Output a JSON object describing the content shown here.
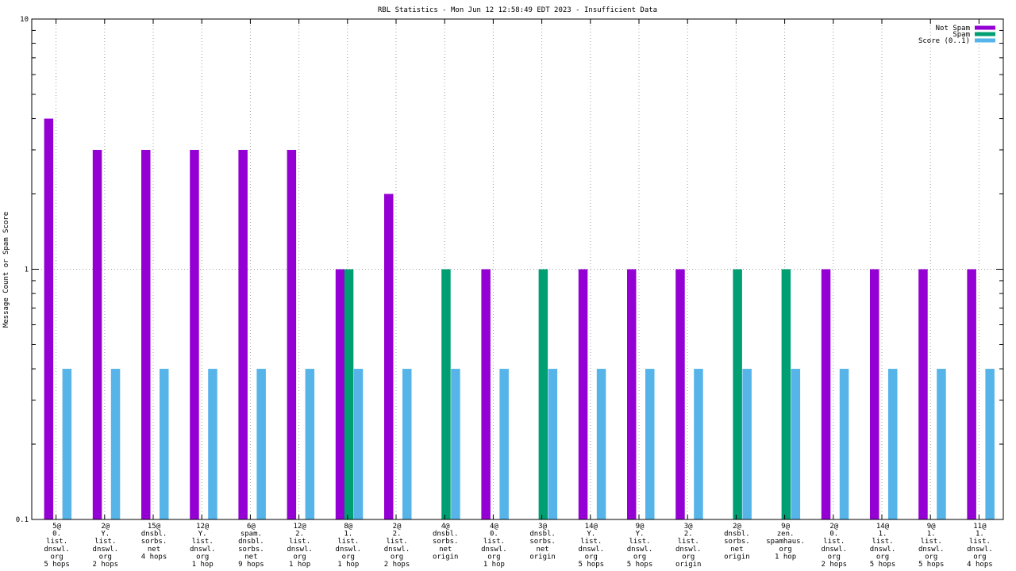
{
  "chart_data": {
    "type": "bar",
    "title": "RBL Statistics - Mon Jun 12 12:58:49 EDT 2023 - Insufficient Data",
    "xlabel": "",
    "ylabel": "Message Count or Spam Score",
    "y_scale": "log",
    "ylim": [
      0.1,
      10
    ],
    "y_ticks": [
      {
        "value": 0.1,
        "label": "0.1"
      },
      {
        "value": 1,
        "label": "1"
      },
      {
        "value": 10,
        "label": "10"
      }
    ],
    "grid": true,
    "legend_position": "top-right",
    "categories": [
      [
        "5@",
        "0.",
        "list.",
        "dnswl.",
        "org",
        "5 hops"
      ],
      [
        "2@",
        "Y.",
        "list.",
        "dnswl.",
        "org",
        "2 hops"
      ],
      [
        "15@",
        "dnsbl.",
        "sorbs.",
        "net",
        "4 hops"
      ],
      [
        "12@",
        "Y.",
        "list.",
        "dnswl.",
        "org",
        "1 hop"
      ],
      [
        "6@",
        "spam.",
        "dnsbl.",
        "sorbs.",
        "net",
        "9 hops"
      ],
      [
        "12@",
        "2.",
        "list.",
        "dnswl.",
        "org",
        "1 hop"
      ],
      [
        "8@",
        "1.",
        "list.",
        "dnswl.",
        "org",
        "1 hop"
      ],
      [
        "2@",
        "2.",
        "list.",
        "dnswl.",
        "org",
        "2 hops"
      ],
      [
        "4@",
        "dnsbl.",
        "sorbs.",
        "net",
        "origin"
      ],
      [
        "4@",
        "0.",
        "list.",
        "dnswl.",
        "org",
        "1 hop"
      ],
      [
        "3@",
        "dnsbl.",
        "sorbs.",
        "net",
        "origin"
      ],
      [
        "14@",
        "Y.",
        "list.",
        "dnswl.",
        "org",
        "5 hops"
      ],
      [
        "9@",
        "Y.",
        "list.",
        "dnswl.",
        "org",
        "5 hops"
      ],
      [
        "3@",
        "2.",
        "list.",
        "dnswl.",
        "org",
        "origin"
      ],
      [
        "2@",
        "dnsbl.",
        "sorbs.",
        "net",
        "origin"
      ],
      [
        "9@",
        "zen.",
        "spamhaus.",
        "org",
        "1 hop"
      ],
      [
        "2@",
        "0.",
        "list.",
        "dnswl.",
        "org",
        "2 hops"
      ],
      [
        "14@",
        "1.",
        "list.",
        "dnswl.",
        "org",
        "5 hops"
      ],
      [
        "9@",
        "1.",
        "list.",
        "dnswl.",
        "org",
        "5 hops"
      ],
      [
        "11@",
        "1.",
        "list.",
        "dnswl.",
        "org",
        "4 hops"
      ]
    ],
    "series": [
      {
        "name": "Not Spam",
        "color": "#9400d3",
        "values": [
          4,
          3,
          3,
          3,
          3,
          3,
          1,
          2,
          0,
          1,
          0,
          1,
          1,
          1,
          0,
          0,
          1,
          1,
          1,
          1
        ]
      },
      {
        "name": "Spam",
        "color": "#009e73",
        "values": [
          0,
          0,
          0,
          0,
          0,
          0,
          1,
          0,
          1,
          0,
          1,
          0,
          0,
          0,
          1,
          1,
          0,
          0,
          0,
          0
        ]
      },
      {
        "name": "Score (0..1)",
        "color": "#56b4e9",
        "values": [
          0.4,
          0.4,
          0.4,
          0.4,
          0.4,
          0.4,
          0.4,
          0.4,
          0.4,
          0.4,
          0.4,
          0.4,
          0.4,
          0.4,
          0.4,
          0.4,
          0.4,
          0.4,
          0.4,
          0.4
        ]
      }
    ]
  }
}
